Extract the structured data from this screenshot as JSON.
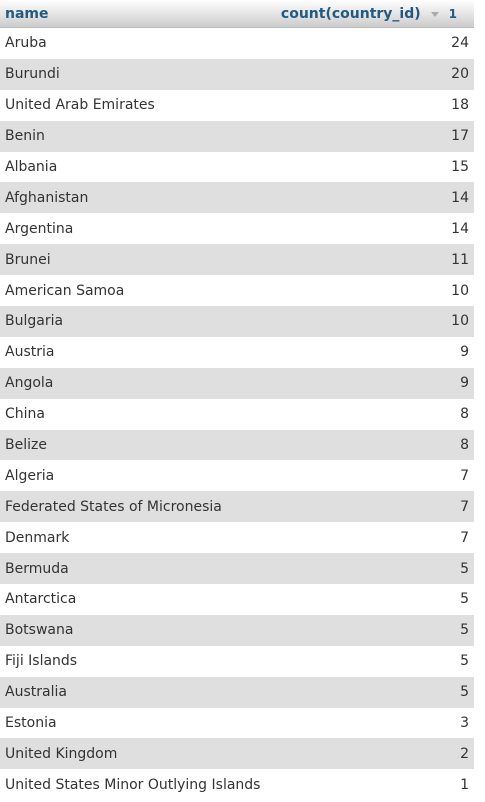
{
  "header": {
    "name_label": "name",
    "count_label": "count(country_id)",
    "sort_order": "1"
  },
  "rows": [
    {
      "name": "Aruba",
      "count": "24"
    },
    {
      "name": "Burundi",
      "count": "20"
    },
    {
      "name": "United Arab Emirates",
      "count": "18"
    },
    {
      "name": "Benin",
      "count": "17"
    },
    {
      "name": "Albania",
      "count": "15"
    },
    {
      "name": "Afghanistan",
      "count": "14"
    },
    {
      "name": "Argentina",
      "count": "14"
    },
    {
      "name": "Brunei",
      "count": "11"
    },
    {
      "name": "American Samoa",
      "count": "10"
    },
    {
      "name": "Bulgaria",
      "count": "10"
    },
    {
      "name": "Austria",
      "count": "9"
    },
    {
      "name": "Angola",
      "count": "9"
    },
    {
      "name": "China",
      "count": "8"
    },
    {
      "name": "Belize",
      "count": "8"
    },
    {
      "name": "Algeria",
      "count": "7"
    },
    {
      "name": "Federated States of Micronesia",
      "count": "7"
    },
    {
      "name": "Denmark",
      "count": "7"
    },
    {
      "name": "Bermuda",
      "count": "5"
    },
    {
      "name": "Antarctica",
      "count": "5"
    },
    {
      "name": "Botswana",
      "count": "5"
    },
    {
      "name": "Fiji Islands",
      "count": "5"
    },
    {
      "name": "Australia",
      "count": "5"
    },
    {
      "name": "Estonia",
      "count": "3"
    },
    {
      "name": "United Kingdom",
      "count": "2"
    },
    {
      "name": "United States Minor Outlying Islands",
      "count": "1"
    }
  ],
  "colors": {
    "header_text": "#235a81",
    "row_odd": "#ffffff",
    "row_even": "#dfdfdf"
  }
}
